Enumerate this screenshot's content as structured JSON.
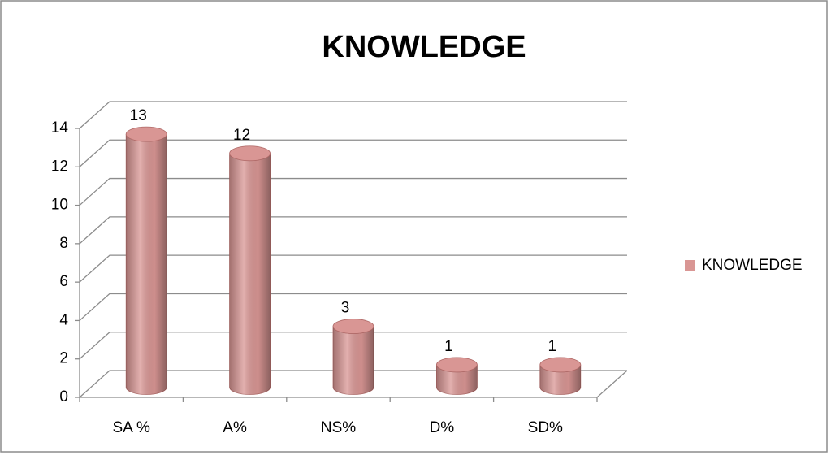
{
  "chart_data": {
    "type": "bar",
    "title": "KNOWLEDGE",
    "categories": [
      "SA %",
      "A%",
      "NS%",
      "D%",
      "SD%"
    ],
    "series": [
      {
        "name": "KNOWLEDGE",
        "color": "#d99694",
        "values": [
          13,
          12,
          3,
          1,
          1
        ]
      }
    ],
    "ylim": [
      0,
      14
    ],
    "yticks": [
      0,
      2,
      4,
      6,
      8,
      10,
      12,
      14
    ],
    "grid": true,
    "legend": "right"
  }
}
